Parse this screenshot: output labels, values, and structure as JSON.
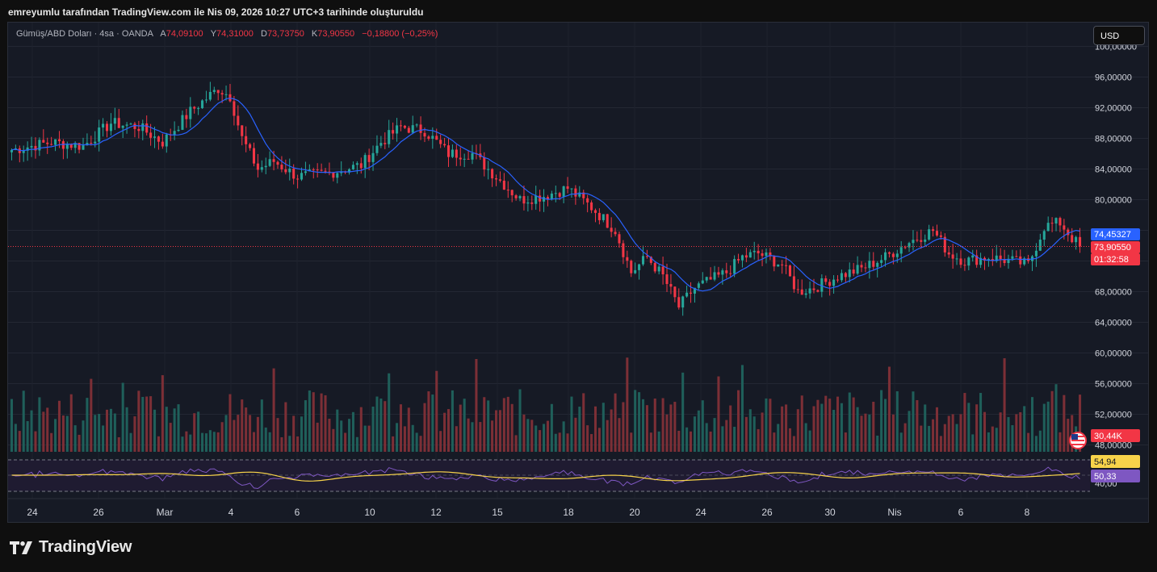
{
  "caption": "emreyumlu tarafından TradingView.com ile Nis 09, 2026 10:27 UTC+3 tarihinde oluşturuldu",
  "legend": {
    "symbol": "Gümüş/ABD Doları · 4sa · OANDA",
    "open_label": "A",
    "open": "74,09100",
    "high_label": "Y",
    "high": "74,31000",
    "low_label": "D",
    "low": "73,73750",
    "close_label": "K",
    "close": "73,90550",
    "change": "−0,18800 (−0,25%)"
  },
  "currency_button": "USD",
  "brand": "TradingView",
  "colors": {
    "up": "#26a69a",
    "down": "#f23645",
    "ma": "#2962ff",
    "rsi": "#7e57c2",
    "rsi_ma": "#f7d34a",
    "bg": "#161a25"
  },
  "chart_data": {
    "type": "candlestick",
    "price_axis": {
      "ticks": [
        "100,00000",
        "96,00000",
        "92,00000",
        "88,00000",
        "84,00000",
        "80,00000",
        "68,00000",
        "64,00000",
        "60,00000",
        "56,00000",
        "52,00000",
        "48,00000"
      ],
      "range": [
        47,
        101
      ]
    },
    "time_axis": {
      "ticks": [
        "24",
        "26",
        "Mar",
        "4",
        "6",
        "10",
        "12",
        "15",
        "18",
        "20",
        "24",
        "26",
        "30",
        "Nis",
        "6",
        "8"
      ]
    },
    "price_labels": {
      "ma_value": "74,45327",
      "last_price": "73,90550",
      "countdown": "01:32:58",
      "volume": "30,44K"
    },
    "anchors": [
      [
        0,
        86.5
      ],
      [
        10,
        87.5
      ],
      [
        18,
        87.0
      ],
      [
        25,
        90.0
      ],
      [
        32,
        89.5
      ],
      [
        38,
        87.5
      ],
      [
        45,
        91.5
      ],
      [
        52,
        94.5
      ],
      [
        55,
        93.5
      ],
      [
        58,
        88.0
      ],
      [
        62,
        84.0
      ],
      [
        66,
        85.0
      ],
      [
        72,
        83.0
      ],
      [
        80,
        83.5
      ],
      [
        88,
        84.5
      ],
      [
        93,
        87.5
      ],
      [
        98,
        89.5
      ],
      [
        104,
        89.0
      ],
      [
        110,
        86.0
      ],
      [
        116,
        86.0
      ],
      [
        122,
        83.0
      ],
      [
        128,
        80.0
      ],
      [
        134,
        80.5
      ],
      [
        140,
        81.5
      ],
      [
        146,
        79.0
      ],
      [
        152,
        76.0
      ],
      [
        156,
        70.5
      ],
      [
        160,
        72.5
      ],
      [
        164,
        70.0
      ],
      [
        168,
        66.0
      ],
      [
        172,
        68.5
      ],
      [
        176,
        69.5
      ],
      [
        180,
        70.5
      ],
      [
        184,
        72.5
      ],
      [
        188,
        73.0
      ],
      [
        194,
        71.5
      ],
      [
        198,
        68.0
      ],
      [
        202,
        68.5
      ],
      [
        208,
        70.0
      ],
      [
        214,
        71.0
      ],
      [
        220,
        72.5
      ],
      [
        226,
        74.5
      ],
      [
        232,
        76.0
      ],
      [
        236,
        73.0
      ],
      [
        240,
        72.0
      ],
      [
        246,
        72.5
      ],
      [
        252,
        72.0
      ],
      [
        256,
        71.5
      ],
      [
        260,
        76.5
      ],
      [
        264,
        77.0
      ],
      [
        267,
        75.0
      ],
      [
        269,
        73.9
      ]
    ],
    "rsi": {
      "values": [
        "54,94",
        "50,33"
      ],
      "levels": [
        70,
        50,
        30
      ],
      "level_label": "40,00"
    }
  }
}
